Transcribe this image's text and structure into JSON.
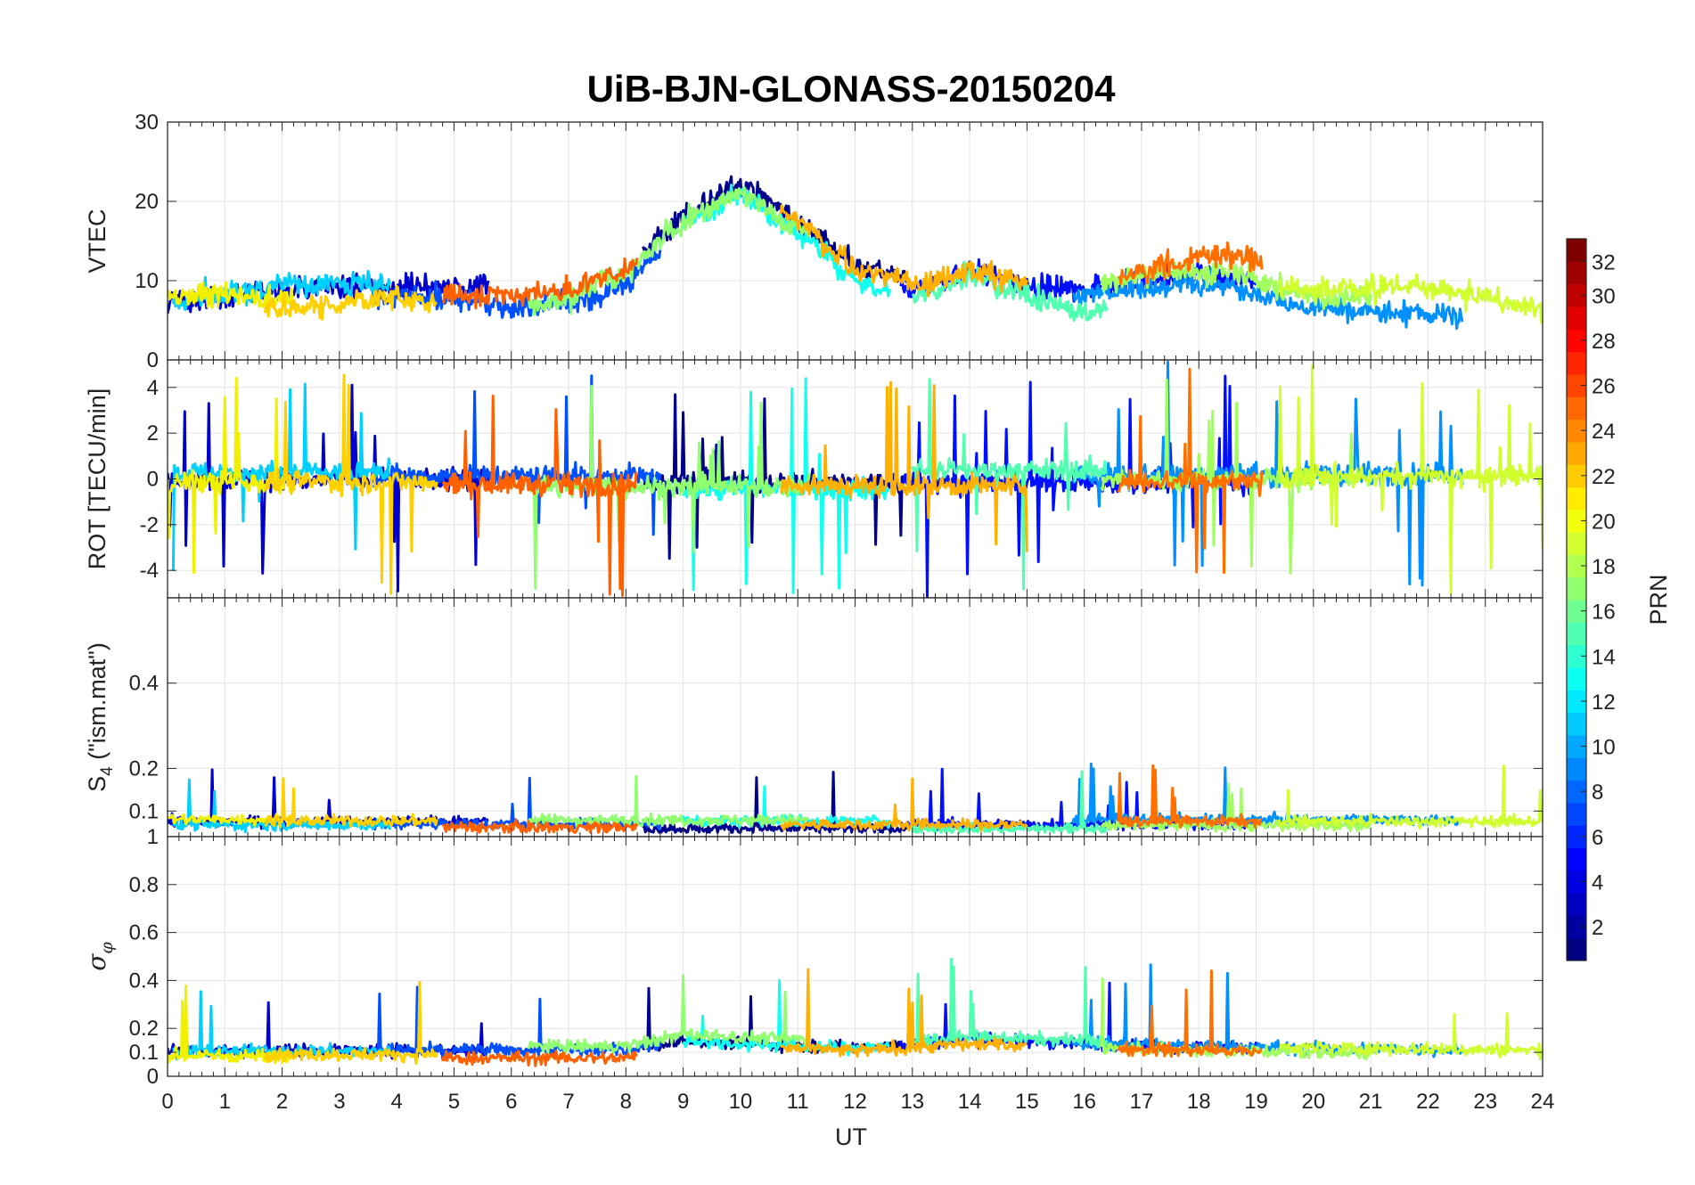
{
  "chart_data": {
    "type": "line",
    "title": "UiB-BJN-GLONASS-20150204",
    "xlabel": "UT",
    "xlim": [
      0,
      24
    ],
    "xticks": [
      "0",
      "1",
      "2",
      "3",
      "4",
      "5",
      "6",
      "7",
      "8",
      "9",
      "10",
      "11",
      "12",
      "13",
      "14",
      "15",
      "16",
      "17",
      "18",
      "19",
      "20",
      "21",
      "22",
      "23",
      "24"
    ],
    "grid": true,
    "panels": [
      {
        "name": "vtec",
        "ylabel": "VTEC",
        "ylim": [
          0,
          30
        ],
        "yticks": [
          "0",
          "10",
          "20",
          "30"
        ],
        "ytick_values": [
          0,
          10,
          20,
          30
        ],
        "baseline": [
          [
            0,
            7
          ],
          [
            3,
            8
          ],
          [
            5,
            8
          ],
          [
            7,
            8
          ],
          [
            8,
            11
          ],
          [
            9,
            18
          ],
          [
            10,
            22
          ],
          [
            11,
            17
          ],
          [
            12,
            11
          ],
          [
            13,
            9
          ],
          [
            14,
            12
          ],
          [
            15,
            10
          ],
          [
            16,
            9
          ],
          [
            17,
            11
          ],
          [
            18,
            12
          ],
          [
            19,
            11
          ],
          [
            20,
            9
          ],
          [
            21,
            9
          ],
          [
            22,
            8
          ],
          [
            23,
            7
          ],
          [
            24,
            6
          ]
        ],
        "noise": 1.4,
        "spike_rate": 0.0,
        "spike_amp": 0
      },
      {
        "name": "rot",
        "ylabel": "ROT [TECU/min]",
        "ylim": [
          -5.2,
          5.2
        ],
        "yticks": [
          "-4",
          "-2",
          "0",
          "2",
          "4"
        ],
        "ytick_values": [
          -4,
          -2,
          0,
          2,
          4
        ],
        "baseline": [
          [
            0,
            0
          ],
          [
            24,
            0
          ]
        ],
        "noise": 0.45,
        "spike_rate": 0.04,
        "spike_amp": 3.5
      },
      {
        "name": "s4",
        "ylabel": "S4 (\"ism.mat\")",
        "ylabel_main": "S",
        "ylabel_sub": "4",
        "ylabel_rest": " (\"ism.mat\")",
        "ylim": [
          0.04,
          0.6
        ],
        "yticks": [
          "0.1",
          "0.2",
          "0.4"
        ],
        "ytick_values": [
          0.1,
          0.2,
          0.4
        ],
        "baseline": [
          [
            0,
            0.07
          ],
          [
            24,
            0.07
          ]
        ],
        "noise": 0.012,
        "spike_rate": 0.01,
        "spike_amp": 0.1
      },
      {
        "name": "sigma-phi",
        "ylabel": "σφ",
        "ylabel_main": "σ",
        "ylabel_sub": "φ",
        "ylim": [
          0,
          1
        ],
        "yticks": [
          "0",
          "0.1",
          "0.2",
          "0.4",
          "0.6",
          "0.8",
          "1"
        ],
        "ytick_values": [
          0,
          0.1,
          0.2,
          0.4,
          0.6,
          0.8,
          1
        ],
        "baseline": [
          [
            0,
            0.1
          ],
          [
            8,
            0.1
          ],
          [
            9,
            0.15
          ],
          [
            12,
            0.12
          ],
          [
            14,
            0.15
          ],
          [
            18,
            0.12
          ],
          [
            24,
            0.1
          ]
        ],
        "noise": 0.025,
        "spike_rate": 0.012,
        "spike_amp": 0.25
      }
    ],
    "satellites": [
      {
        "prn": 1,
        "color": "#00008f",
        "start": 8.3,
        "end": 12.9
      },
      {
        "prn": 3,
        "color": "#0000cf",
        "start": 0.0,
        "end": 5.6
      },
      {
        "prn": 5,
        "color": "#0010ff",
        "start": 12.8,
        "end": 19.0
      },
      {
        "prn": 7,
        "color": "#0050ff",
        "start": 3.6,
        "end": 8.6
      },
      {
        "prn": 9,
        "color": "#0090ff",
        "start": 15.8,
        "end": 22.6
      },
      {
        "prn": 11,
        "color": "#00d0ff",
        "start": 0.1,
        "end": 3.9
      },
      {
        "prn": 12,
        "color": "#10ffef",
        "start": 9.0,
        "end": 12.6
      },
      {
        "prn": 14,
        "color": "#50ffaf",
        "start": 13.0,
        "end": 16.4
      },
      {
        "prn": 16,
        "color": "#90ff6f",
        "start": 6.3,
        "end": 11.2
      },
      {
        "prn": 17,
        "color": "#a0ff5f",
        "start": 16.3,
        "end": 21.0
      },
      {
        "prn": 19,
        "color": "#d0ff2f",
        "start": 19.4,
        "end": 24.0
      },
      {
        "prn": 20,
        "color": "#f0f000",
        "start": 0.0,
        "end": 2.2
      },
      {
        "prn": 21,
        "color": "#ffd000",
        "start": 1.7,
        "end": 4.7
      },
      {
        "prn": 22,
        "color": "#ffb000",
        "start": 10.7,
        "end": 15.0
      },
      {
        "prn": 24,
        "color": "#ff7000",
        "start": 16.6,
        "end": 19.1
      },
      {
        "prn": 25,
        "color": "#ff6000",
        "start": 4.8,
        "end": 8.2
      }
    ],
    "colorbar": {
      "label": "PRN",
      "range": [
        1,
        32
      ],
      "ticks": [
        "2",
        "4",
        "6",
        "8",
        "10",
        "12",
        "14",
        "16",
        "18",
        "20",
        "22",
        "24",
        "26",
        "28",
        "30",
        "32"
      ],
      "tick_values": [
        2,
        4,
        6,
        8,
        10,
        12,
        14,
        16,
        18,
        20,
        22,
        24,
        26,
        28,
        30,
        32
      ],
      "colormap": "jet"
    }
  }
}
